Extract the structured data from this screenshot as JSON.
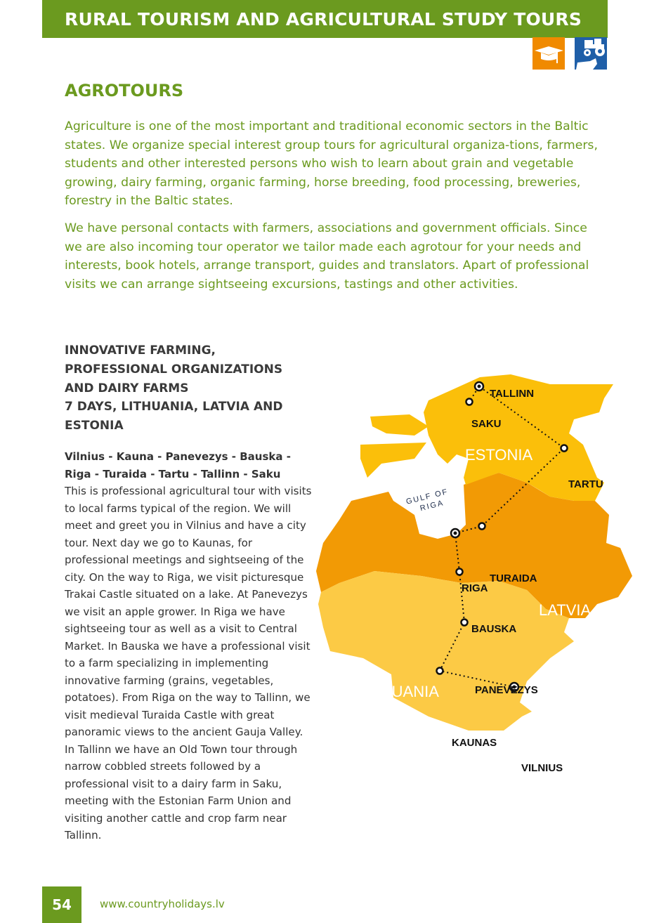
{
  "header": {
    "title": "RURAL TOURISM AND AGRICULTURAL STUDY TOURS"
  },
  "icons": {
    "education": "graduation-cap-icon",
    "farm": "tractor-cow-icon",
    "education_color": "#f08a00",
    "farm_color": "#1f5fa8"
  },
  "section": {
    "title": "AGROTOURS",
    "paragraphs": [
      "Agriculture is one of the most important and traditional economic sectors in the Baltic states. We organize special interest group tours for agricultural organiza-tions, farmers, students and other interested persons who wish to learn about grain and vegetable growing, dairy farming, organic farming, horse breeding, food processing, breweries, forestry  in the Baltic states.",
      "We have personal contacts with farmers, associations and government officials. Since we are also incoming tour operator we tailor made each agrotour for your needs and interests, book hotels, arrange transport, guides and translators. Apart of professional visits we can arrange sightseeing excursions, tastings and other activities."
    ]
  },
  "tour": {
    "title_lines": [
      "INNOVATIVE FARMING,",
      "PROFESSIONAL ORGANIZATIONS",
      "AND DAIRY FARMS",
      "7 DAYS, LITHUANIA, LATVIA AND",
      "ESTONIA"
    ],
    "route": "Vilnius - Kauna - Panevezys - Bauska - Riga - Turaida - Tartu - Tallinn - Saku",
    "description": "This is professional agricultural tour with visits to local farms typical of the region. We will meet and greet you in Vilnius and have a city tour. Next day we go to Kaunas, for professional meetings and sightseeing of the city. On the way to Riga, we visit picturesque Trakai Castle situated on a lake. At Panevezys we visit an apple grower. In Riga we have sightseeing tour as well as a visit to Central Market. In Bauska we have a professional visit to a farm specializing in implementing innovative farming (grains, vegetables, potatoes). From Riga on the way to Tallinn, we visit  medieval Turaida Castle with great panoramic views to the ancient Gauja Valley. In Tallinn we have an Old Town tour through narrow cobbled streets followed by a professional visit to a dairy farm in Saku, meeting with the Estonian Farm Union and visiting another cattle and crop farm near Tallinn."
  },
  "map": {
    "countries": {
      "estonia": "ESTONIA",
      "latvia": "LATVIA",
      "lithuania": "LITHUANIA"
    },
    "colors": {
      "estonia": "#fbbf0a",
      "latvia": "#f29a05",
      "lithuania": "#fcca45"
    },
    "gulf_line1": "GULF OF",
    "gulf_line2": "RIGA",
    "cities": {
      "tallinn": "TALLINN",
      "saku": "SAKU",
      "tartu": "TARTU",
      "turaida": "TURAIDA",
      "riga": "RIGA",
      "bauska": "BAUSKA",
      "panevezys": "PANEVEZYS",
      "kaunas": "KAUNAS",
      "vilnius": "VILNIUS"
    }
  },
  "footer": {
    "page_number": "54",
    "url": "www.countryholidays.lv"
  }
}
